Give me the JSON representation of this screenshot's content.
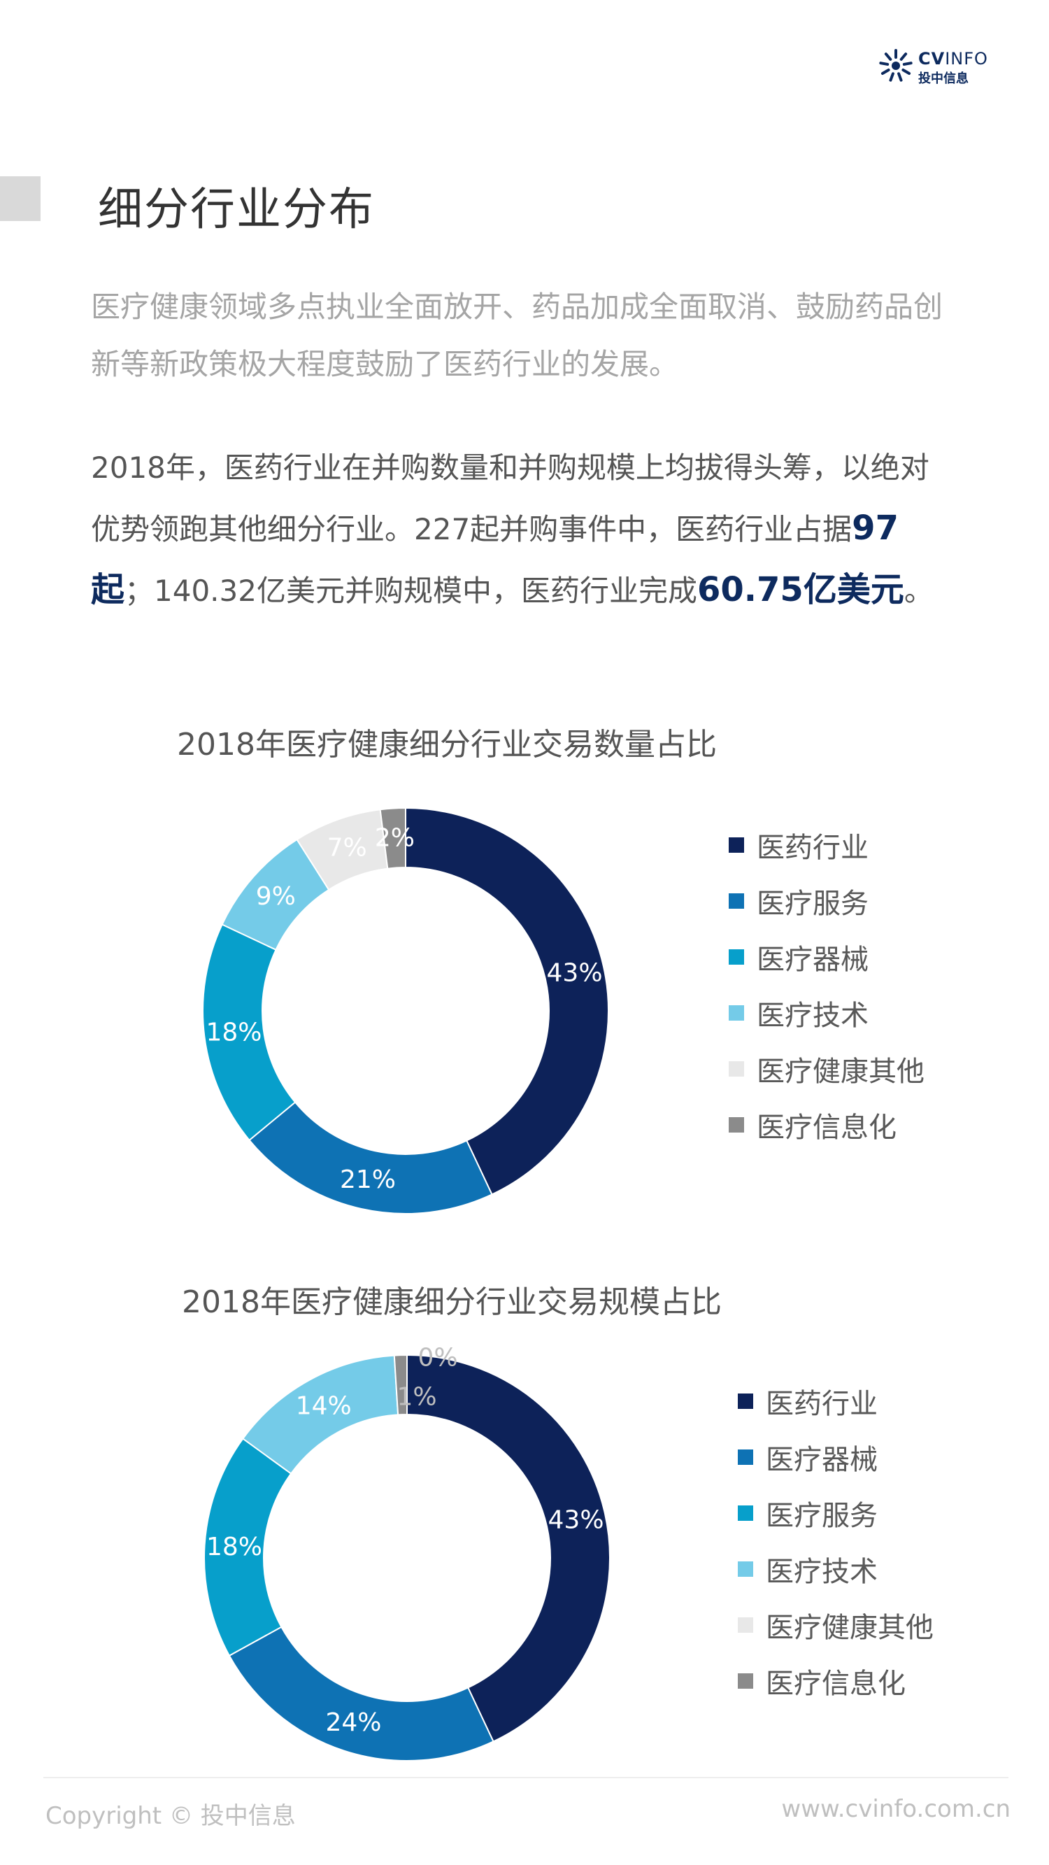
{
  "header": {
    "logo_en_a": "CV",
    "logo_en_b": "INFO",
    "logo_cn": "投中信息"
  },
  "page_title": "细分行业分布",
  "intro": "医疗健康领域多点执业全面放开、药品加成全面取消、鼓励药品创新等新政策极大程度鼓励了医药行业的发展。",
  "body": {
    "part1": "2018年，医药行业在并购数量和并购规模上均拔得头筹，以绝对优势领跑其他细分行业。227起并购事件中，医药行业占据",
    "bold1": "97起",
    "part2": "；140.32亿美元并购规模中，医药行业完成",
    "bold2": "60.75亿美元",
    "part3": "。"
  },
  "chart_data": [
    {
      "type": "pie",
      "donut": true,
      "title": "2018年医疗健康细分行业交易数量占比",
      "categories": [
        "医药行业",
        "医疗服务",
        "医疗器械",
        "医疗技术",
        "医疗健康其他",
        "医疗信息化"
      ],
      "values": [
        43,
        21,
        18,
        9,
        7,
        2
      ],
      "data_labels": [
        "43%",
        "21%",
        "18%",
        "9%",
        "7%",
        "2%"
      ],
      "colors": [
        "#0d2259",
        "#0e72b4",
        "#079fcb",
        "#74cbe8",
        "#e8e8e8",
        "#8b8b8b"
      ],
      "label_colors": [
        "#ffffff",
        "#ffffff",
        "#ffffff",
        "#ffffff",
        "#ffffff",
        "#ffffff"
      ],
      "legend_position": "right"
    },
    {
      "type": "pie",
      "donut": true,
      "title": "2018年医疗健康细分行业交易规模占比",
      "categories": [
        "医药行业",
        "医疗器械",
        "医疗服务",
        "医疗技术",
        "医疗健康其他",
        "医疗信息化"
      ],
      "values": [
        43,
        24,
        18,
        14,
        0,
        1
      ],
      "data_labels": [
        "43%",
        "24%",
        "18%",
        "14%",
        "0%",
        "1%"
      ],
      "colors": [
        "#0d2259",
        "#0e72b4",
        "#079fcb",
        "#74cbe8",
        "#e8e8e8",
        "#8b8b8b"
      ],
      "label_colors": [
        "#ffffff",
        "#ffffff",
        "#ffffff",
        "#ffffff",
        "#bfbfbf",
        "#bfbfbf"
      ],
      "legend_position": "right"
    }
  ],
  "footer": {
    "copyright": "Copyright © 投中信息",
    "website": "www.cvinfo.com.cn"
  }
}
